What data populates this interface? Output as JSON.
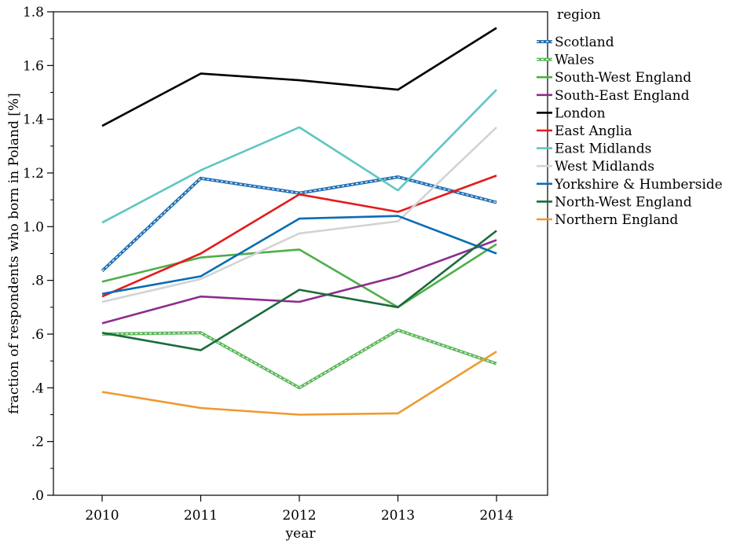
{
  "chart_data": {
    "type": "line",
    "xlabel": "year",
    "ylabel": "fraction of respondents who born in Poland [%]",
    "x": [
      2010,
      2011,
      2012,
      2013,
      2014
    ],
    "x_tick_labels": [
      "2010",
      "2011",
      "2012",
      "2013",
      "2014"
    ],
    "ylim": [
      0,
      1.8
    ],
    "y_ticks": [
      0,
      0.2,
      0.4,
      0.6,
      0.8,
      1.0,
      1.2,
      1.4,
      1.6,
      1.8
    ],
    "y_tick_labels": [
      ".0",
      ".2",
      ".4",
      ".6",
      ".8",
      "1.0",
      "1.2",
      "1.4",
      "1.6",
      "1.8"
    ],
    "grid": false,
    "legend": {
      "title": "region",
      "placement": "right"
    },
    "series": [
      {
        "name": "Scotland",
        "color": "#1f6fb4",
        "style": "dashed-thick",
        "values": [
          0.835,
          1.18,
          1.125,
          1.185,
          1.09
        ]
      },
      {
        "name": "Wales",
        "color": "#5cb85c",
        "style": "dashed-thick",
        "values": [
          0.6,
          0.605,
          0.4,
          0.615,
          0.49
        ]
      },
      {
        "name": "South-West England",
        "color": "#4daf4a",
        "style": "solid",
        "values": [
          0.795,
          0.885,
          0.915,
          0.7,
          0.935
        ]
      },
      {
        "name": "South-East England",
        "color": "#8e2c8e",
        "style": "solid",
        "values": [
          0.64,
          0.74,
          0.72,
          0.815,
          0.95
        ]
      },
      {
        "name": "London",
        "color": "#000000",
        "style": "solid",
        "values": [
          1.375,
          1.57,
          1.545,
          1.51,
          1.74
        ]
      },
      {
        "name": "East Anglia",
        "color": "#e41a1c",
        "style": "solid",
        "values": [
          0.74,
          0.9,
          1.12,
          1.055,
          1.19
        ]
      },
      {
        "name": "East Midlands",
        "color": "#5fc6c0",
        "style": "solid",
        "values": [
          1.015,
          1.21,
          1.37,
          1.135,
          1.51
        ]
      },
      {
        "name": "West Midlands",
        "color": "#d3d3d3",
        "style": "solid",
        "values": [
          0.72,
          0.805,
          0.975,
          1.02,
          1.37
        ]
      },
      {
        "name": "Yorkshire & Humberside",
        "color": "#0a6db5",
        "style": "solid",
        "values": [
          0.75,
          0.815,
          1.03,
          1.04,
          0.9
        ]
      },
      {
        "name": "North-West England",
        "color": "#1a6b3c",
        "style": "solid",
        "values": [
          0.605,
          0.54,
          0.765,
          0.7,
          0.985
        ]
      },
      {
        "name": "Northern England",
        "color": "#f0992f",
        "style": "solid",
        "values": [
          0.385,
          0.325,
          0.3,
          0.305,
          0.535
        ]
      }
    ]
  }
}
